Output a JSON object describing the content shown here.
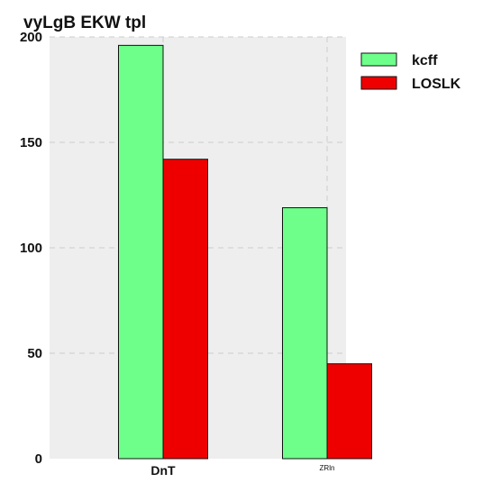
{
  "chart_data": {
    "type": "bar",
    "title": "vyLgB EKW tpl",
    "xlabel": "",
    "ylabel": "",
    "categories": [
      "DnT",
      "ZRln"
    ],
    "series": [
      {
        "name": "kcff",
        "values": [
          196,
          119
        ],
        "color": "#6eff8a"
      },
      {
        "name": "LOSLK",
        "values": [
          142,
          45
        ],
        "color": "#ee0000"
      }
    ],
    "ylim": [
      0,
      200
    ],
    "yticks": [
      0,
      50,
      100,
      150,
      200
    ],
    "grid": true,
    "legend": "right",
    "background": "#eeeeee"
  }
}
